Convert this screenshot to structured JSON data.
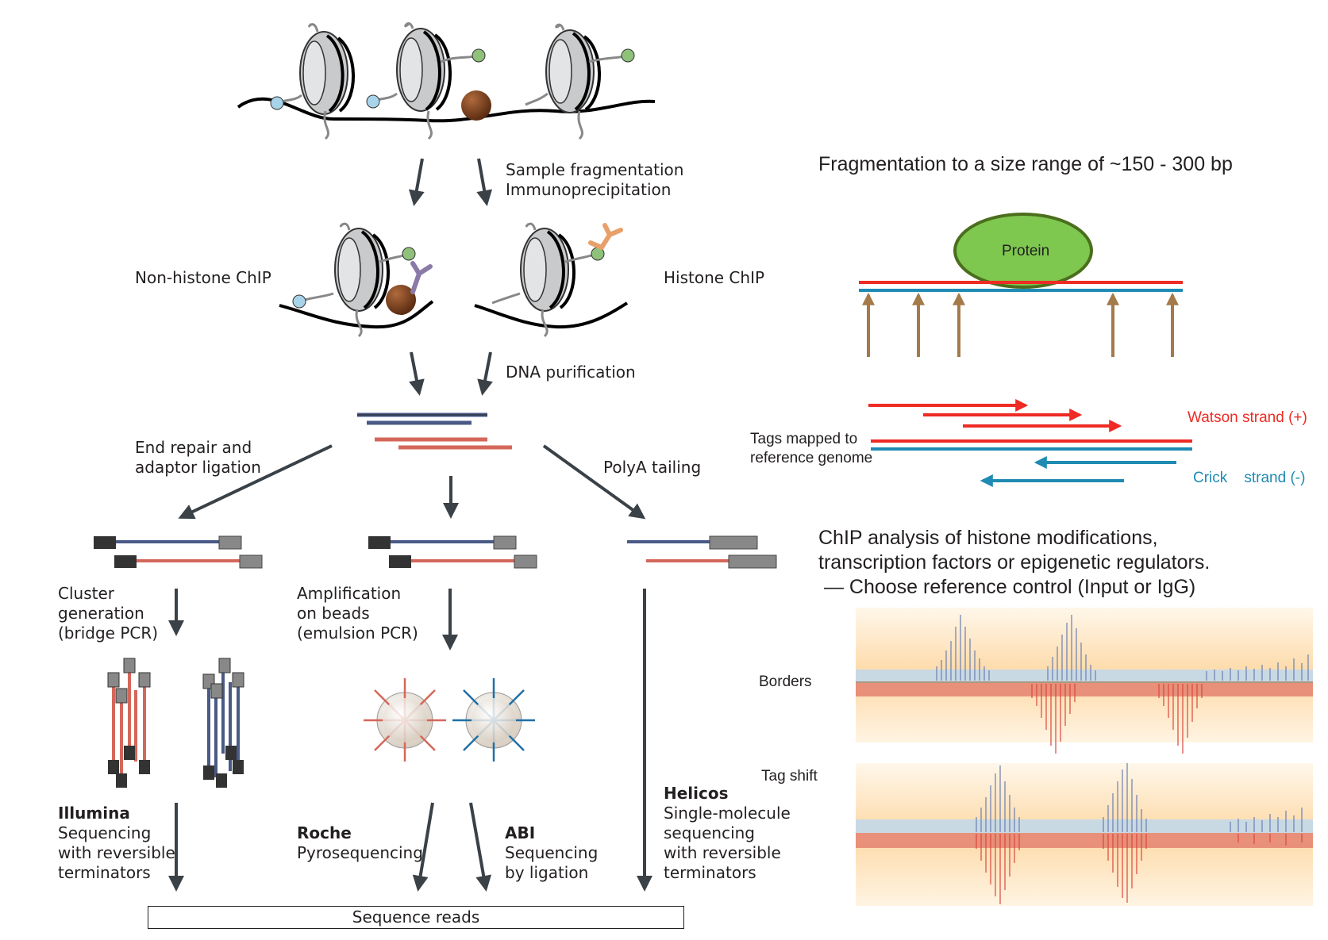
{
  "left_panel": {
    "step1": [
      "Sample fragmentation",
      "Immunoprecipitation"
    ],
    "non_histone_label": "Non-histone ChIP",
    "histone_label": "Histone ChIP",
    "step2": "DNA purification",
    "end_repair": [
      "End repair and",
      "adaptor ligation"
    ],
    "polya": "PolyA tailing",
    "cluster": [
      "Cluster",
      "generation",
      "(bridge PCR)"
    ],
    "beads": [
      "Amplification",
      "on beads",
      "(emulsion PCR)"
    ],
    "platforms": [
      {
        "name": "Illumina",
        "desc": [
          "Sequencing",
          "with reversible",
          "terminators"
        ]
      },
      {
        "name": "Roche",
        "desc": [
          "Pyrosequencing"
        ]
      },
      {
        "name": "ABI",
        "desc": [
          "Sequencing",
          "by ligation"
        ]
      },
      {
        "name": "Helicos",
        "desc": [
          "Single-molecule",
          "sequencing",
          "with reversible",
          "terminators"
        ]
      }
    ],
    "reads": "Sequence reads"
  },
  "right_panel": {
    "frag_title": "Fragmentation to a size range of ~150 - 300 bp",
    "protein": "Protein",
    "tags_label": [
      "Tags mapped to",
      "reference genome"
    ],
    "watson": "Watson strand (+)",
    "crick": "Crick    strand (-)",
    "analysis": [
      "ChIP analysis of histone modifications,",
      "transcription factors or epigenetic regulators.",
      " — Choose reference control (Input or IgG)"
    ],
    "borders": "Borders",
    "tag_shift": "Tag shift"
  },
  "colors": {
    "arrow": "#3a4147",
    "blue_strand": "#4a5a86",
    "red_strand": "#d5675a",
    "watson": "#ee2b24",
    "crick": "#1f8bb3",
    "protein_fill": "#7ec850",
    "protein_stroke": "#4b6e1d",
    "cut_arrow": "#a47a4a"
  }
}
